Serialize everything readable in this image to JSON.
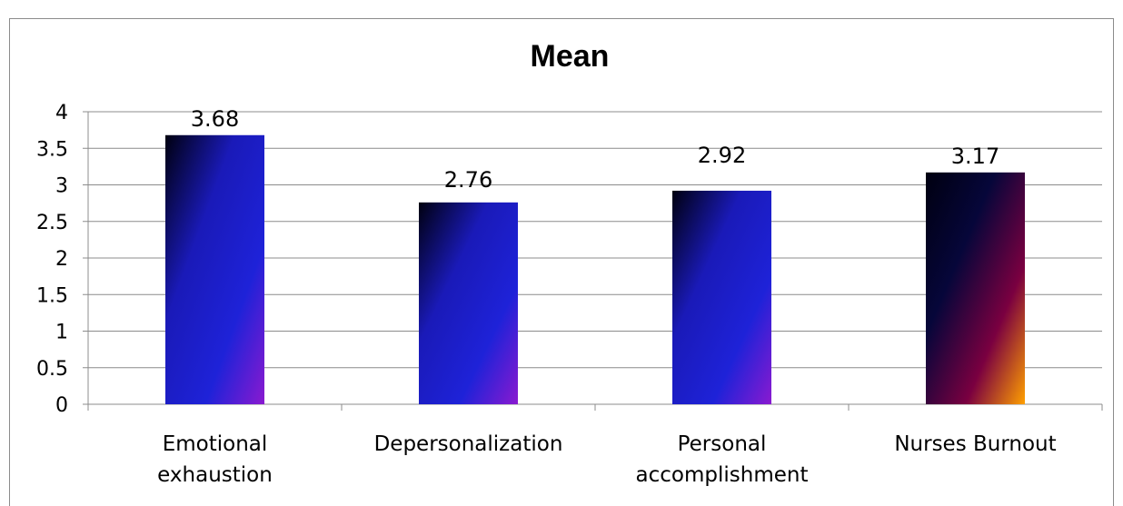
{
  "chart_data": {
    "type": "bar",
    "title": "Mean",
    "categories": [
      [
        "Emotional",
        "exhaustion"
      ],
      [
        "Depersonalization"
      ],
      [
        "Personal",
        "accomplishment"
      ],
      [
        "Nurses Burnout"
      ]
    ],
    "values": [
      3.68,
      2.76,
      2.92,
      3.17
    ],
    "value_labels": [
      "3.68",
      "2.76",
      "2.92",
      "3.17"
    ],
    "ylim": [
      0,
      4
    ],
    "y_ticks": [
      "0",
      "0.5",
      "1",
      "1.5",
      "2",
      "2.5",
      "3",
      "3.5",
      "4"
    ],
    "grid": true,
    "legend": "none",
    "bar_gradients": [
      [
        "#000010",
        "#1a1ab8",
        "#1e22d8",
        "#8a1ad0"
      ],
      [
        "#000010",
        "#1a1ab8",
        "#1e22d8",
        "#8a1ad0"
      ],
      [
        "#000010",
        "#1a1ab8",
        "#1e22d8",
        "#8a1ad0"
      ],
      [
        "#000010",
        "#06063a",
        "#7a0040",
        "#ffa000"
      ]
    ]
  }
}
